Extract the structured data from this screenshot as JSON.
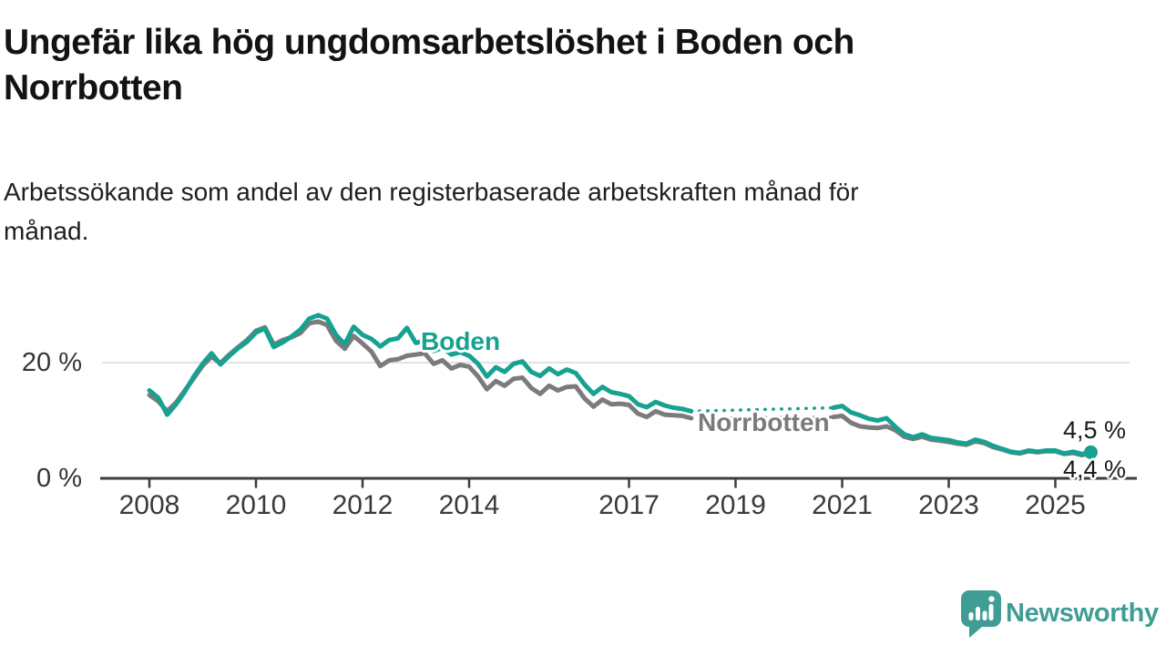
{
  "header": {
    "title_line1": "Ungefär lika hög ungdomsarbetslöshet i Boden och",
    "title_line2": "Norrbotten",
    "subtitle_line1": "Arbetssökande som andel av den registerbaserade arbetskraften månad för",
    "subtitle_line2": "månad."
  },
  "chart_data": {
    "type": "line",
    "unit": "percent of registered labour force",
    "frequency": "monthly",
    "grid": "horizontal-only",
    "y_axis": {
      "range": [
        0,
        30
      ],
      "ticks": [
        {
          "value": 0,
          "label": "0 %"
        },
        {
          "value": 20,
          "label": "20 %"
        }
      ]
    },
    "x_axis": {
      "range_years": [
        2008,
        2025.7
      ],
      "ticks": [
        {
          "year": 2008,
          "label": "2008"
        },
        {
          "year": 2010,
          "label": "2010"
        },
        {
          "year": 2012,
          "label": "2012"
        },
        {
          "year": 2014,
          "label": "2014"
        },
        {
          "year": 2017,
          "label": "2017"
        },
        {
          "year": 2019,
          "label": "2019"
        },
        {
          "year": 2021,
          "label": "2021"
        },
        {
          "year": 2023,
          "label": "2023"
        },
        {
          "year": 2025,
          "label": "2025"
        }
      ]
    },
    "data_gap": {
      "from_year": 2018.17,
      "to_year": 2020.83,
      "style": "dotted-connector"
    },
    "series": [
      {
        "name": "Boden",
        "color": "#16a191",
        "end_label": "4,5 %",
        "end_value_pct": 4.5,
        "end_dot": true,
        "segments": [
          {
            "start": 2008.0,
            "step_months": 2,
            "values": [
              15.2,
              13.9,
              11.0,
              12.8,
              15.0,
              17.6,
              19.8,
              21.6,
              19.7,
              21.2,
              22.5,
              23.6,
              25.2,
              25.9,
              22.7,
              23.5,
              24.5,
              25.7,
              27.6,
              28.2,
              27.6,
              24.8,
              23.2,
              26.2,
              24.8,
              24.1,
              22.8,
              23.9,
              24.2,
              26.0,
              23.4,
              23.8,
              22.0,
              22.6,
              21.4,
              21.8,
              21.2,
              19.8,
              17.6,
              19.2,
              18.4,
              19.8,
              20.2,
              18.4,
              17.7,
              19.0,
              18.0,
              18.8,
              18.2,
              16.2,
              14.6,
              15.8,
              14.9,
              14.6,
              14.2,
              12.8,
              12.3,
              13.2,
              12.6,
              12.2,
              12.0,
              11.6
            ]
          },
          {
            "start": 2020.833,
            "step_months": 2,
            "values": [
              12.2,
              12.5,
              11.4,
              10.9,
              10.3,
              10.0,
              10.4,
              8.9,
              7.6,
              7.1,
              7.6,
              7.0,
              6.8,
              6.6,
              6.2,
              6.0,
              6.7,
              6.3,
              5.6,
              5.1,
              4.6,
              4.4,
              4.8,
              4.6,
              4.8,
              4.8,
              4.3,
              4.6,
              4.2,
              4.5
            ]
          }
        ]
      },
      {
        "name": "Norrbotten",
        "color": "#7b7b7b",
        "end_label": "4,4 %",
        "end_value_pct": 4.4,
        "end_dot": true,
        "segments": [
          {
            "start": 2008.0,
            "step_months": 2,
            "values": [
              14.4,
              13.3,
              11.6,
              13.1,
              15.2,
              17.3,
              19.5,
              21.0,
              19.9,
              21.4,
              22.7,
              23.9,
              25.5,
              26.1,
              23.1,
              23.9,
              24.4,
              25.1,
              26.8,
              27.1,
              26.5,
              23.8,
              22.4,
              24.6,
              23.3,
              21.9,
              19.4,
              20.4,
              20.6,
              21.2,
              21.4,
              21.6,
              19.8,
              20.4,
              19.0,
              19.6,
              19.3,
              17.6,
              15.4,
              16.8,
              16.0,
              17.2,
              17.4,
              15.6,
              14.6,
              16.0,
              15.2,
              15.8,
              15.9,
              13.8,
              12.4,
              13.6,
              12.8,
              12.9,
              12.7,
              11.2,
              10.6,
              11.6,
              11.0,
              10.9,
              10.8,
              10.4
            ]
          },
          {
            "start": 2020.833,
            "step_months": 2,
            "values": [
              10.6,
              10.8,
              9.6,
              9.0,
              8.8,
              8.7,
              9.0,
              8.3,
              7.2,
              6.8,
              7.2,
              6.7,
              6.5,
              6.3,
              6.0,
              5.8,
              6.4,
              6.1,
              5.4,
              5.0,
              4.5,
              4.3,
              4.7,
              4.5,
              4.7,
              4.7,
              4.2,
              4.4,
              4.0,
              4.4
            ]
          }
        ]
      }
    ]
  },
  "footer": {
    "brand": "Newsworthy"
  }
}
